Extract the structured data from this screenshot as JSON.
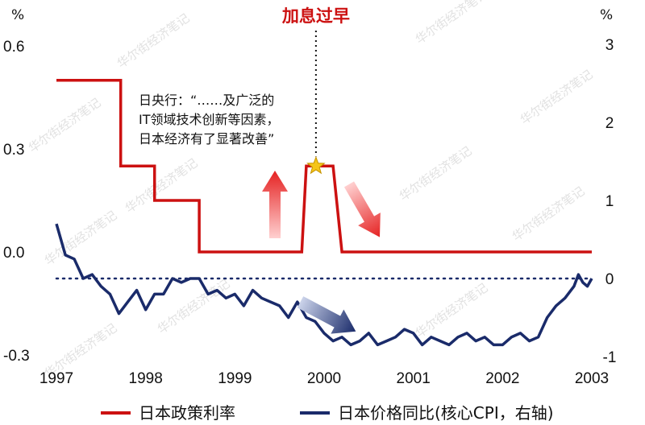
{
  "chart_data": {
    "type": "line",
    "title": "加息过早",
    "left_axis": {
      "unit": "%",
      "ylim": [
        -0.3,
        0.6
      ],
      "ticks": [
        "0.6",
        "0.3",
        "0.0",
        "-0.3"
      ],
      "tick_values": [
        0.6,
        0.3,
        0.0,
        -0.3
      ]
    },
    "right_axis": {
      "unit": "%",
      "ylim": [
        -1,
        3
      ],
      "ticks": [
        "3",
        "2",
        "1",
        "0",
        "-1"
      ],
      "tick_values": [
        3,
        2,
        1,
        0,
        -1
      ]
    },
    "x_axis": {
      "ticks": [
        "1997",
        "1998",
        "1999",
        "2000",
        "2001",
        "2002",
        "2003"
      ],
      "tick_values": [
        1997,
        1998,
        1999,
        2000,
        2001,
        2002,
        2003
      ]
    },
    "annotation": {
      "lines": [
        "日央行：“……及广泛的",
        "IT领域技术创新等因素，",
        "日本经济有了显著改善”"
      ]
    },
    "zero_reference_line": 0,
    "grid": false,
    "legend_position": "bottom",
    "series": [
      {
        "name": "日本政策利率",
        "axis": "left",
        "color": "#cc1111",
        "step": true,
        "x": [
          1997.0,
          1997.72,
          1997.72,
          1998.1,
          1998.1,
          1998.6,
          1998.6,
          1998.97,
          1999.1,
          1999.7,
          1999.75,
          1999.75,
          1999.8,
          1999.82,
          1999.95,
          2000.1,
          2000.2,
          2001.15,
          2003.0
        ],
        "values": [
          0.5,
          0.5,
          0.25,
          0.25,
          0.15,
          0.15,
          0.0,
          0.0,
          0.0,
          0.0,
          0.0,
          0.0,
          0.25,
          0.25,
          0.25,
          0.25,
          0.0,
          0.0,
          0.0
        ]
      },
      {
        "name": "日本价格同比(核心CPI，右轴)",
        "axis": "right",
        "color": "#1a2b6a",
        "x": [
          1997.0,
          1997.1,
          1997.2,
          1997.3,
          1997.4,
          1997.5,
          1997.6,
          1997.7,
          1997.8,
          1997.9,
          1998.0,
          1998.1,
          1998.2,
          1998.3,
          1998.4,
          1998.5,
          1998.6,
          1998.7,
          1998.8,
          1998.9,
          1999.0,
          1999.1,
          1999.2,
          1999.3,
          1999.4,
          1999.5,
          1999.6,
          1999.7,
          1999.8,
          1999.9,
          2000.0,
          2000.1,
          2000.2,
          2000.3,
          2000.4,
          2000.5,
          2000.6,
          2000.7,
          2000.8,
          2000.9,
          2001.0,
          2001.1,
          2001.2,
          2001.3,
          2001.4,
          2001.5,
          2001.6,
          2001.7,
          2001.8,
          2001.9,
          2002.0,
          2002.1,
          2002.2,
          2002.3,
          2002.4,
          2002.5,
          2002.6,
          2002.7,
          2002.8,
          2002.85,
          2002.9,
          2002.95,
          2003.0
        ],
        "values": [
          0.7,
          0.3,
          0.25,
          0.0,
          0.05,
          -0.1,
          -0.2,
          -0.45,
          -0.3,
          -0.15,
          -0.4,
          -0.2,
          -0.2,
          0.0,
          -0.05,
          0.0,
          0.0,
          -0.2,
          -0.15,
          -0.25,
          -0.2,
          -0.35,
          -0.15,
          -0.25,
          -0.3,
          -0.35,
          -0.5,
          -0.3,
          -0.5,
          -0.55,
          -0.7,
          -0.8,
          -0.75,
          -0.85,
          -0.8,
          -0.7,
          -0.85,
          -0.8,
          -0.75,
          -0.65,
          -0.7,
          -0.85,
          -0.75,
          -0.8,
          -0.85,
          -0.75,
          -0.7,
          -0.8,
          -0.75,
          -0.85,
          -0.85,
          -0.75,
          -0.7,
          -0.8,
          -0.75,
          -0.5,
          -0.35,
          -0.25,
          -0.1,
          0.05,
          -0.05,
          -0.1,
          0.0
        ]
      }
    ]
  },
  "legend": [
    {
      "label": "日本政策利率",
      "color": "#cc1111"
    },
    {
      "label": "日本价格同比(核心CPI，右轴)",
      "color": "#1a2b6a"
    }
  ],
  "watermark": "华尔街经济笔记"
}
